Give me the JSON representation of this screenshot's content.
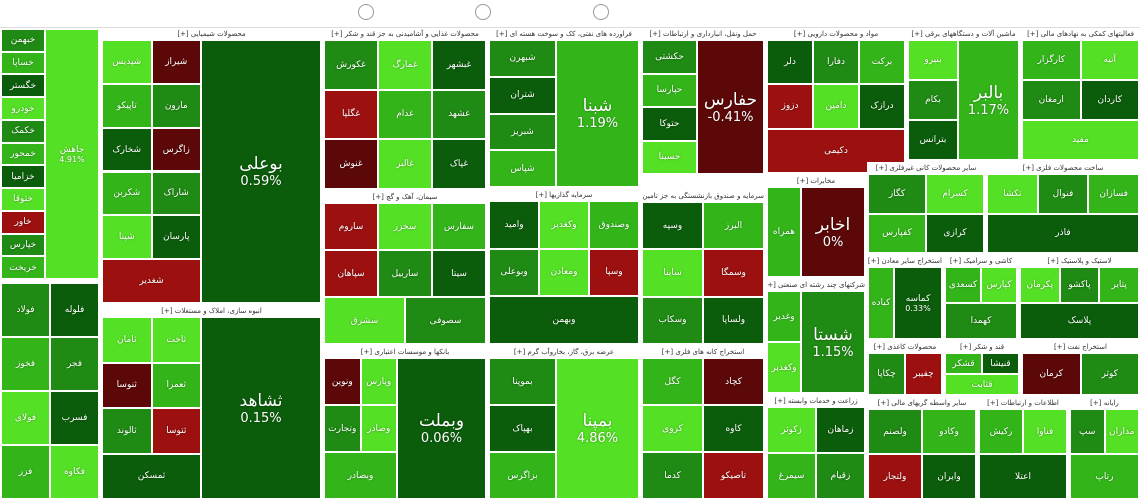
{
  "sectors": [
    {
      "tiles": [
        {
          "label": "جاهش",
          "change": "4.91%",
          "color": "#54e025"
        },
        {
          "label": "خبهمن",
          "color": "#1f8a14"
        },
        {
          "label": "خساپا",
          "color": "#33b51a"
        },
        {
          "label": "خگستر",
          "color": "#0b5d0b"
        },
        {
          "label": "خودرو",
          "color": "#54e025"
        },
        {
          "label": "خکمک",
          "color": "#1f8a14"
        },
        {
          "label": "خمحور",
          "color": "#33b51a"
        },
        {
          "label": "خزامیا",
          "color": "#0b5d0b"
        },
        {
          "label": "ختوقا",
          "color": "#54e025"
        },
        {
          "label": "خاور",
          "color": "#9c1010"
        },
        {
          "label": "خپارس",
          "color": "#1f8a14"
        },
        {
          "label": "خریخت",
          "color": "#33b51a"
        }
      ]
    },
    {
      "tiles": [
        {
          "label": "فولاد",
          "color": "#1f8a14"
        },
        {
          "label": "فلوله",
          "color": "#0b5d0b"
        },
        {
          "label": "فخوز",
          "color": "#33b51a"
        },
        {
          "label": "فجر",
          "color": "#1f8a14"
        },
        {
          "label": "فولای",
          "color": "#54e025"
        },
        {
          "label": "فسرب",
          "color": "#0b5d0b"
        },
        {
          "label": "فزر",
          "color": "#33b51a"
        },
        {
          "label": "فکاوه",
          "color": "#54e025"
        }
      ]
    },
    {
      "title": "محصولات شیمیایی [+]",
      "tiles": [
        {
          "label": "بوعلی",
          "change": "0.59%",
          "color": "#0b5d0b"
        },
        {
          "label": "شپدیس",
          "color": "#54e025"
        },
        {
          "label": "شیراز",
          "color": "#5c0808"
        },
        {
          "label": "تاپیکو",
          "color": "#33b51a"
        },
        {
          "label": "مارون",
          "color": "#1f8a14"
        },
        {
          "label": "شخارک",
          "color": "#0b5d0b"
        },
        {
          "label": "زاگرس",
          "color": "#5c0808"
        },
        {
          "label": "شکربن",
          "color": "#33b51a"
        },
        {
          "label": "شاراک",
          "color": "#1f8a14"
        },
        {
          "label": "شپنا",
          "color": "#54e025"
        },
        {
          "label": "پارسان",
          "color": "#0b5d0b"
        },
        {
          "label": "شغدیر",
          "color": "#9c1010"
        }
      ]
    },
    {
      "title": "انبوه سازی، املاک و مستغلات [+]",
      "tiles": [
        {
          "label": "ثشاهد",
          "change": "0.15%",
          "color": "#0b5d0b"
        },
        {
          "label": "ثامان",
          "color": "#54e025"
        },
        {
          "label": "ثاخت",
          "color": "#54e025"
        },
        {
          "label": "ثنوسا",
          "color": "#5c0808"
        },
        {
          "label": "ثعمرا",
          "color": "#33b51a"
        },
        {
          "label": "ثالوند",
          "color": "#1f8a14"
        },
        {
          "label": "ثتوسا",
          "color": "#9c1010"
        },
        {
          "label": "ثمسکن",
          "color": "#0b5d0b"
        }
      ]
    },
    {
      "title": "محصولات غذایی و آشامیدنی به جز قند و شکر [+]",
      "tiles": [
        {
          "label": "غکورش",
          "color": "#1f8a14"
        },
        {
          "label": "غمارگ",
          "color": "#54e025"
        },
        {
          "label": "غبشهر",
          "color": "#0b5d0b"
        },
        {
          "label": "غگلپا",
          "color": "#9c1010"
        },
        {
          "label": "غدام",
          "color": "#33b51a"
        },
        {
          "label": "غشهد",
          "color": "#1f8a14"
        },
        {
          "label": "غنوش",
          "color": "#5c0808"
        },
        {
          "label": "غالبر",
          "color": "#54e025"
        },
        {
          "label": "غپاک",
          "color": "#0b5d0b"
        }
      ]
    },
    {
      "title": "سیمان، آهک و گچ [+]",
      "tiles": [
        {
          "label": "ساروم",
          "color": "#9c1010"
        },
        {
          "label": "سخزر",
          "color": "#54e025"
        },
        {
          "label": "سفارس",
          "color": "#33b51a"
        },
        {
          "label": "سپاهان",
          "color": "#9c1010"
        },
        {
          "label": "ساربیل",
          "color": "#1f8a14"
        },
        {
          "label": "سیتا",
          "color": "#0b5d0b"
        },
        {
          "label": "سشرق",
          "color": "#54e025"
        },
        {
          "label": "سصوفی",
          "color": "#1f8a14"
        }
      ]
    },
    {
      "title": "بانکها و موسسات اعتباری [+]",
      "tiles": [
        {
          "label": "وبملت",
          "change": "0.06%",
          "color": "#0b5d0b"
        },
        {
          "label": "ونوین",
          "color": "#5c0808"
        },
        {
          "label": "وپارس",
          "color": "#54e025"
        },
        {
          "label": "وتجارت",
          "color": "#1f8a14"
        },
        {
          "label": "وصادر",
          "color": "#54e025"
        },
        {
          "label": "وبصادر",
          "color": "#33b51a"
        }
      ]
    },
    {
      "title": "فراورده های نفتی، کک و سوخت هسته ای [+]",
      "tiles": [
        {
          "label": "شبنا",
          "change": "1.19%",
          "color": "#33b51a"
        },
        {
          "label": "شبهرن",
          "color": "#1f8a14"
        },
        {
          "label": "شتران",
          "color": "#0b5d0b"
        },
        {
          "label": "شبریز",
          "color": "#1f8a14"
        },
        {
          "label": "شپاس",
          "color": "#33b51a"
        }
      ]
    },
    {
      "title": "سرمایه گذاریها [+]",
      "tiles": [
        {
          "label": "وامید",
          "color": "#0b5d0b"
        },
        {
          "label": "وکغدیر",
          "color": "#54e025"
        },
        {
          "label": "وصندوق",
          "color": "#33b51a"
        },
        {
          "label": "وبوعلی",
          "color": "#1f8a14"
        },
        {
          "label": "ومعادن",
          "color": "#54e025"
        },
        {
          "label": "وسپا",
          "color": "#9c1010"
        },
        {
          "label": "وبهمن",
          "color": "#0b5d0b"
        }
      ]
    },
    {
      "title": "عرضه برق، گاز، بخاروآب گرم [+]",
      "tiles": [
        {
          "label": "بمپنا",
          "change": "4.86%",
          "color": "#54e025"
        },
        {
          "label": "بموپنا",
          "color": "#1f8a14"
        },
        {
          "label": "بهپاک",
          "color": "#0b5d0b"
        },
        {
          "label": "بزاگرس",
          "color": "#33b51a"
        }
      ]
    },
    {
      "title": "حمل ونقل، انبارداری و ارتباطات [+]",
      "tiles": [
        {
          "label": "حفارس",
          "change": "-0.41%",
          "color": "#5c0808"
        },
        {
          "label": "حکشتی",
          "color": "#1f8a14"
        },
        {
          "label": "حپارسا",
          "color": "#33b51a"
        },
        {
          "label": "حتوکا",
          "color": "#0b5d0b"
        },
        {
          "label": "حسینا",
          "color": "#54e025"
        }
      ]
    },
    {
      "title": "سرمایه و صندوق بازنشستگی به جز تامین [+]",
      "tiles": [
        {
          "label": "وسپه",
          "color": "#0b5d0b"
        },
        {
          "label": "البرز",
          "color": "#33b51a"
        },
        {
          "label": "ساینا",
          "color": "#54e025"
        },
        {
          "label": "وسمگا",
          "color": "#9c1010"
        },
        {
          "label": "وسکاب",
          "color": "#1f8a14"
        },
        {
          "label": "ولساپا",
          "color": "#0b5d0b"
        }
      ]
    },
    {
      "title": "استخراج کانه های فلزی [+]",
      "tiles": [
        {
          "label": "کگل",
          "color": "#33b51a"
        },
        {
          "label": "کچاد",
          "color": "#5c0808"
        },
        {
          "label": "کروی",
          "color": "#54e025"
        },
        {
          "label": "کاوه",
          "color": "#0b5d0b"
        },
        {
          "label": "کدما",
          "color": "#1f8a14"
        },
        {
          "label": "تاصیکو",
          "color": "#9c1010"
        }
      ]
    },
    {
      "title": "مواد و محصولات دارویی [+]",
      "tiles": [
        {
          "label": "دلر",
          "color": "#0b5d0b"
        },
        {
          "label": "دفارا",
          "color": "#1f8a14"
        },
        {
          "label": "برکت",
          "color": "#33b51a"
        },
        {
          "label": "دزوز",
          "color": "#9c1010"
        },
        {
          "label": "دامین",
          "color": "#54e025"
        },
        {
          "label": "درازک",
          "color": "#0b5d0b"
        },
        {
          "label": "دکیمی",
          "color": "#9c1010"
        }
      ]
    },
    {
      "title": "مخابرات [+]",
      "tiles": [
        {
          "label": "اخابر",
          "change": "0%",
          "color": "#5c0808"
        },
        {
          "label": "همراه",
          "color": "#33b51a"
        }
      ]
    },
    {
      "title": "شرکتهای چند رشته ای صنعتی [+]",
      "tiles": [
        {
          "label": "شستا",
          "change": "1.15%",
          "color": "#1f8a14"
        },
        {
          "label": "وغدیر",
          "color": "#33b51a"
        },
        {
          "label": "وکغدیر",
          "color": "#54e025"
        }
      ]
    },
    {
      "title": "زراعت و خدمات وابسته [+]",
      "tiles": [
        {
          "label": "زکوثر",
          "color": "#54e025"
        },
        {
          "label": "زماهان",
          "color": "#0b5d0b"
        },
        {
          "label": "سیمرغ",
          "color": "#33b51a"
        },
        {
          "label": "زقیام",
          "color": "#1f8a14"
        }
      ]
    },
    {
      "title": "ماشین آلات و دستگاههای برقی [+]",
      "tiles": [
        {
          "label": "بالبر",
          "change": "1.17%",
          "color": "#33b51a"
        },
        {
          "label": "بنیرو",
          "color": "#54e025"
        },
        {
          "label": "بکام",
          "color": "#1f8a14"
        },
        {
          "label": "بترانس",
          "color": "#0b5d0b"
        }
      ]
    },
    {
      "title": "فعالیتهای کمکی به نهادهای مالی [+]",
      "tiles": [
        {
          "label": "کارگزار",
          "color": "#33b51a"
        },
        {
          "label": "آتیه",
          "color": "#54e025"
        },
        {
          "label": "ارمغان",
          "color": "#1f8a14"
        },
        {
          "label": "کاردان",
          "color": "#0b5d0b"
        },
        {
          "label": "مفید",
          "color": "#54e025"
        }
      ]
    },
    {
      "title": "سایر محصولات کانی غیرفلزی [+]",
      "tiles": [
        {
          "label": "کگاز",
          "color": "#1f8a14"
        },
        {
          "label": "کسرام",
          "color": "#54e025"
        },
        {
          "label": "کفپارس",
          "color": "#33b51a"
        },
        {
          "label": "کرازی",
          "color": "#0b5d0b"
        }
      ]
    },
    {
      "title": "ساخت محصولات فلزی [+]",
      "tiles": [
        {
          "label": "تکشا",
          "color": "#54e025"
        },
        {
          "label": "فنوال",
          "color": "#1f8a14"
        },
        {
          "label": "فسازان",
          "color": "#33b51a"
        },
        {
          "label": "فاذر",
          "color": "#0b5d0b"
        }
      ]
    },
    {
      "title": "استخراج سایر معادن [+]",
      "tiles": [
        {
          "label": "کماسه",
          "change": "0.33%",
          "color": "#0b5d0b"
        },
        {
          "label": "کباده",
          "color": "#33b51a"
        }
      ]
    },
    {
      "title": "کاشی و سرامیک [+]",
      "tiles": [
        {
          "label": "کسعدی",
          "color": "#33b51a"
        },
        {
          "label": "کپارس",
          "color": "#54e025"
        },
        {
          "label": "کهمدا",
          "color": "#1f8a14"
        }
      ]
    },
    {
      "title": "لاستیک و پلاستیک [+]",
      "tiles": [
        {
          "label": "پکرمان",
          "color": "#54e025"
        },
        {
          "label": "پاکشو",
          "color": "#1f8a14"
        },
        {
          "label": "پتایر",
          "color": "#33b51a"
        },
        {
          "label": "پلاسک",
          "color": "#0b5d0b"
        }
      ]
    },
    {
      "title": "محصولات کاغذی [+]",
      "tiles": [
        {
          "label": "چکاپا",
          "color": "#1f8a14"
        },
        {
          "label": "چفیبر",
          "color": "#9c1010"
        }
      ]
    },
    {
      "title": "قند و شکر [+]",
      "tiles": [
        {
          "label": "قشکر",
          "color": "#33b51a"
        },
        {
          "label": "قنیشا",
          "color": "#0b5d0b"
        },
        {
          "label": "قثابت",
          "color": "#54e025"
        }
      ]
    },
    {
      "title": "استخراج نفت [+]",
      "tiles": [
        {
          "label": "کرمان",
          "color": "#5c0808"
        },
        {
          "label": "کوثر",
          "color": "#1f8a14"
        }
      ]
    },
    {
      "title": "سایر واسطه گریهای مالی [+]",
      "tiles": [
        {
          "label": "ولصنم",
          "color": "#1f8a14"
        },
        {
          "label": "وکادو",
          "color": "#33b51a"
        },
        {
          "label": "ولتجار",
          "color": "#9c1010"
        },
        {
          "label": "وایران",
          "color": "#0b5d0b"
        }
      ]
    },
    {
      "title": "اطلاعات و ارتباطات [+]",
      "tiles": [
        {
          "label": "رکیش",
          "color": "#33b51a"
        },
        {
          "label": "فناوا",
          "color": "#54e025"
        },
        {
          "label": "اعتلا",
          "color": "#0b5d0b"
        }
      ]
    },
    {
      "title": "رایانه [+]",
      "tiles": [
        {
          "label": "سپ",
          "color": "#1f8a14"
        },
        {
          "label": "مداران",
          "color": "#54e025"
        },
        {
          "label": "رتاپ",
          "color": "#33b51a"
        }
      ]
    }
  ]
}
